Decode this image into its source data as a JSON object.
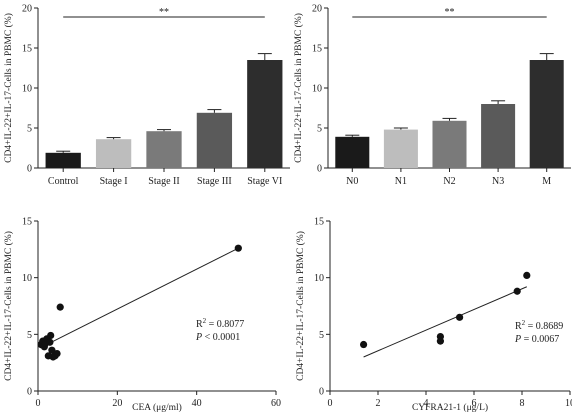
{
  "chart_data": [
    {
      "type": "bar",
      "ylabel": "CD4+IL-22+IL-17-Cells in PBMC (%)",
      "ylim": [
        0,
        20
      ],
      "yticks": [
        0,
        5,
        10,
        15,
        20
      ],
      "categories": [
        "Control",
        "Stage I",
        "Stage II",
        "Stage III",
        "Stage VI"
      ],
      "values": [
        1.9,
        3.6,
        4.6,
        6.9,
        13.5
      ],
      "errors": [
        0.2,
        0.2,
        0.2,
        0.4,
        0.8
      ],
      "colors": [
        "#1a1a1a",
        "#bdbdbd",
        "#7a7a7a",
        "#5a5a5a",
        "#2d2d2d"
      ],
      "significance": "**"
    },
    {
      "type": "bar",
      "ylabel": "CD4+IL-22+IL-17-Cells in PBMC (%)",
      "ylim": [
        0,
        20
      ],
      "yticks": [
        0,
        5,
        10,
        15,
        20
      ],
      "categories": [
        "N0",
        "N1",
        "N2",
        "N3",
        "M"
      ],
      "values": [
        3.9,
        4.8,
        5.9,
        8.0,
        13.5
      ],
      "errors": [
        0.2,
        0.2,
        0.3,
        0.4,
        0.8
      ],
      "colors": [
        "#1a1a1a",
        "#bdbdbd",
        "#7a7a7a",
        "#5a5a5a",
        "#2d2d2d"
      ],
      "significance": "**"
    },
    {
      "type": "scatter",
      "xlabel": "CEA (μg/ml)",
      "ylabel": "CD4+IL-22+IL-17-Cells in PBMC (%)",
      "xlim": [
        0,
        60
      ],
      "ylim": [
        0,
        15
      ],
      "xticks": [
        0,
        20,
        40,
        60
      ],
      "yticks": [
        0,
        5,
        10,
        15
      ],
      "points": [
        [
          0.8,
          4.1
        ],
        [
          1.2,
          4.4
        ],
        [
          1.6,
          3.9
        ],
        [
          1.9,
          4.2
        ],
        [
          2.2,
          4.6
        ],
        [
          2.6,
          3.1
        ],
        [
          3.0,
          4.3
        ],
        [
          3.2,
          4.9
        ],
        [
          3.5,
          3.6
        ],
        [
          3.8,
          3.0
        ],
        [
          4.3,
          3.1
        ],
        [
          4.8,
          3.3
        ],
        [
          5.6,
          7.4
        ],
        [
          50.5,
          12.6
        ]
      ],
      "fit": [
        [
          0.5,
          3.8
        ],
        [
          50.5,
          12.6
        ]
      ],
      "r2_text": "= 0.8077",
      "p_text": "< 0.0001"
    },
    {
      "type": "scatter",
      "xlabel": "CYFRA21-1 (μg/L)",
      "ylabel": "CD4+IL-22+IL-17-Cells in PBMC (%)",
      "xlim": [
        0,
        10
      ],
      "ylim": [
        0,
        15
      ],
      "xticks": [
        0,
        2,
        4,
        6,
        8,
        10
      ],
      "yticks": [
        0,
        5,
        10,
        15
      ],
      "points": [
        [
          1.4,
          4.1
        ],
        [
          4.6,
          4.8
        ],
        [
          4.6,
          4.4
        ],
        [
          5.4,
          6.5
        ],
        [
          7.8,
          8.8
        ],
        [
          8.2,
          10.2
        ]
      ],
      "fit": [
        [
          1.4,
          3.0
        ],
        [
          8.2,
          9.2
        ]
      ],
      "r2_text": "= 0.8689",
      "p_text": "= 0.0067"
    }
  ]
}
